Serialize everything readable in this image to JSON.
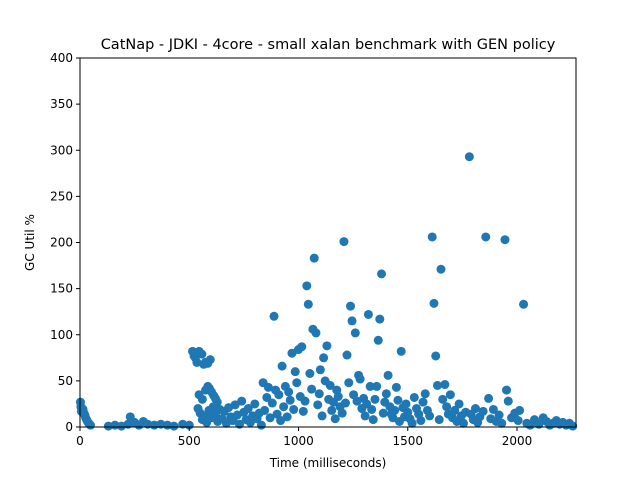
{
  "chart_data": {
    "type": "scatter",
    "title": "CatNap - JDKI - 4core -  small xalan benchmark with GEN policy",
    "xlabel": "Time (milliseconds)",
    "ylabel": "GC Util %",
    "xlim": [
      0,
      2270
    ],
    "ylim": [
      0,
      400
    ],
    "xticks": [
      0,
      500,
      1000,
      1500,
      2000
    ],
    "yticks": [
      0,
      50,
      100,
      150,
      200,
      250,
      300,
      350,
      400
    ],
    "grid": false,
    "marker_color": "#1f77b4",
    "series": [
      {
        "name": "GC Util",
        "points": [
          [
            2,
            27
          ],
          [
            4,
            22
          ],
          [
            6,
            17
          ],
          [
            10,
            20
          ],
          [
            14,
            19
          ],
          [
            18,
            15
          ],
          [
            22,
            13
          ],
          [
            26,
            10
          ],
          [
            30,
            8
          ],
          [
            34,
            6
          ],
          [
            40,
            4
          ],
          [
            48,
            2
          ],
          [
            130,
            1
          ],
          [
            160,
            2
          ],
          [
            190,
            1
          ],
          [
            220,
            3
          ],
          [
            230,
            11
          ],
          [
            250,
            5
          ],
          [
            270,
            2
          ],
          [
            290,
            6
          ],
          [
            310,
            3
          ],
          [
            340,
            2
          ],
          [
            370,
            3
          ],
          [
            400,
            2
          ],
          [
            430,
            1
          ],
          [
            470,
            3
          ],
          [
            500,
            2
          ],
          [
            515,
            82
          ],
          [
            522,
            77
          ],
          [
            528,
            75
          ],
          [
            535,
            70
          ],
          [
            545,
            82
          ],
          [
            558,
            79
          ],
          [
            566,
            68
          ],
          [
            574,
            70
          ],
          [
            585,
            69
          ],
          [
            596,
            73
          ],
          [
            545,
            35
          ],
          [
            560,
            30
          ],
          [
            575,
            40
          ],
          [
            585,
            44
          ],
          [
            592,
            42
          ],
          [
            602,
            38
          ],
          [
            612,
            34
          ],
          [
            620,
            31
          ],
          [
            628,
            27
          ],
          [
            540,
            20
          ],
          [
            550,
            15
          ],
          [
            560,
            8
          ],
          [
            570,
            12
          ],
          [
            580,
            5
          ],
          [
            590,
            18
          ],
          [
            600,
            10
          ],
          [
            610,
            22
          ],
          [
            620,
            14
          ],
          [
            630,
            6
          ],
          [
            640,
            19
          ],
          [
            650,
            9
          ],
          [
            660,
            17
          ],
          [
            670,
            4
          ],
          [
            680,
            21
          ],
          [
            690,
            11
          ],
          [
            700,
            7
          ],
          [
            710,
            24
          ],
          [
            720,
            13
          ],
          [
            730,
            3
          ],
          [
            740,
            28
          ],
          [
            750,
            16
          ],
          [
            760,
            8
          ],
          [
            770,
            20
          ],
          [
            780,
            5
          ],
          [
            790,
            12
          ],
          [
            800,
            25
          ],
          [
            810,
            9
          ],
          [
            820,
            15
          ],
          [
            830,
            2
          ],
          [
            838,
            48
          ],
          [
            845,
            18
          ],
          [
            855,
            32
          ],
          [
            862,
            43
          ],
          [
            870,
            10
          ],
          [
            880,
            26
          ],
          [
            888,
            120
          ],
          [
            895,
            40
          ],
          [
            902,
            14
          ],
          [
            910,
            35
          ],
          [
            918,
            7
          ],
          [
            925,
            66
          ],
          [
            932,
            22
          ],
          [
            940,
            44
          ],
          [
            948,
            11
          ],
          [
            955,
            38
          ],
          [
            962,
            29
          ],
          [
            970,
            80
          ],
          [
            978,
            19
          ],
          [
            985,
            60
          ],
          [
            992,
            48
          ],
          [
            1000,
            84
          ],
          [
            1008,
            33
          ],
          [
            1015,
            87
          ],
          [
            1022,
            17
          ],
          [
            1030,
            28
          ],
          [
            1038,
            153
          ],
          [
            1045,
            133
          ],
          [
            1052,
            58
          ],
          [
            1060,
            41
          ],
          [
            1066,
            106
          ],
          [
            1072,
            183
          ],
          [
            1080,
            102
          ],
          [
            1088,
            24
          ],
          [
            1095,
            36
          ],
          [
            1100,
            62
          ],
          [
            1108,
            12
          ],
          [
            1115,
            75
          ],
          [
            1122,
            50
          ],
          [
            1130,
            88
          ],
          [
            1138,
            30
          ],
          [
            1145,
            45
          ],
          [
            1152,
            18
          ],
          [
            1160,
            27
          ],
          [
            1168,
            9
          ],
          [
            1175,
            40
          ],
          [
            1182,
            33
          ],
          [
            1190,
            22
          ],
          [
            1200,
            15
          ],
          [
            1208,
            201
          ],
          [
            1215,
            26
          ],
          [
            1222,
            78
          ],
          [
            1230,
            48
          ],
          [
            1238,
            131
          ],
          [
            1245,
            115
          ],
          [
            1252,
            35
          ],
          [
            1260,
            102
          ],
          [
            1268,
            28
          ],
          [
            1275,
            56
          ],
          [
            1282,
            52
          ],
          [
            1290,
            20
          ],
          [
            1298,
            31
          ],
          [
            1305,
            12
          ],
          [
            1312,
            25
          ],
          [
            1320,
            122
          ],
          [
            1328,
            44
          ],
          [
            1335,
            19
          ],
          [
            1342,
            8
          ],
          [
            1350,
            30
          ],
          [
            1358,
            44
          ],
          [
            1365,
            94
          ],
          [
            1372,
            117
          ],
          [
            1380,
            166
          ],
          [
            1388,
            15
          ],
          [
            1395,
            27
          ],
          [
            1402,
            36
          ],
          [
            1410,
            56
          ],
          [
            1418,
            22
          ],
          [
            1425,
            14
          ],
          [
            1432,
            10
          ],
          [
            1440,
            18
          ],
          [
            1448,
            43
          ],
          [
            1455,
            29
          ],
          [
            1462,
            6
          ],
          [
            1470,
            82
          ],
          [
            1478,
            21
          ],
          [
            1485,
            11
          ],
          [
            1492,
            25
          ],
          [
            1500,
            16
          ],
          [
            1510,
            9
          ],
          [
            1520,
            4
          ],
          [
            1530,
            32
          ],
          [
            1540,
            20
          ],
          [
            1550,
            14
          ],
          [
            1560,
            7
          ],
          [
            1570,
            27
          ],
          [
            1580,
            36
          ],
          [
            1590,
            18
          ],
          [
            1600,
            12
          ],
          [
            1612,
            206
          ],
          [
            1620,
            134
          ],
          [
            1628,
            77
          ],
          [
            1636,
            45
          ],
          [
            1644,
            8
          ],
          [
            1652,
            171
          ],
          [
            1660,
            30
          ],
          [
            1670,
            46
          ],
          [
            1678,
            22
          ],
          [
            1686,
            14
          ],
          [
            1695,
            35
          ],
          [
            1705,
            10
          ],
          [
            1715,
            18
          ],
          [
            1725,
            6
          ],
          [
            1735,
            25
          ],
          [
            1745,
            12
          ],
          [
            1755,
            4
          ],
          [
            1765,
            16
          ],
          [
            1782,
            293
          ],
          [
            1790,
            14
          ],
          [
            1800,
            8
          ],
          [
            1810,
            20
          ],
          [
            1820,
            5
          ],
          [
            1830,
            11
          ],
          [
            1845,
            17
          ],
          [
            1857,
            206
          ],
          [
            1870,
            31
          ],
          [
            1880,
            9
          ],
          [
            1892,
            19
          ],
          [
            1905,
            6
          ],
          [
            1918,
            13
          ],
          [
            1930,
            4
          ],
          [
            1945,
            203
          ],
          [
            1952,
            40
          ],
          [
            1960,
            28
          ],
          [
            1975,
            10
          ],
          [
            1990,
            15
          ],
          [
            2005,
            7
          ],
          [
            2012,
            18
          ],
          [
            2030,
            133
          ],
          [
            2045,
            4
          ],
          [
            2060,
            2
          ],
          [
            2080,
            8
          ],
          [
            2100,
            3
          ],
          [
            2120,
            10
          ],
          [
            2135,
            6
          ],
          [
            2150,
            2
          ],
          [
            2165,
            4
          ],
          [
            2180,
            7
          ],
          [
            2195,
            3
          ],
          [
            2210,
            5
          ],
          [
            2225,
            2
          ],
          [
            2240,
            4
          ],
          [
            2255,
            1
          ]
        ]
      }
    ]
  }
}
